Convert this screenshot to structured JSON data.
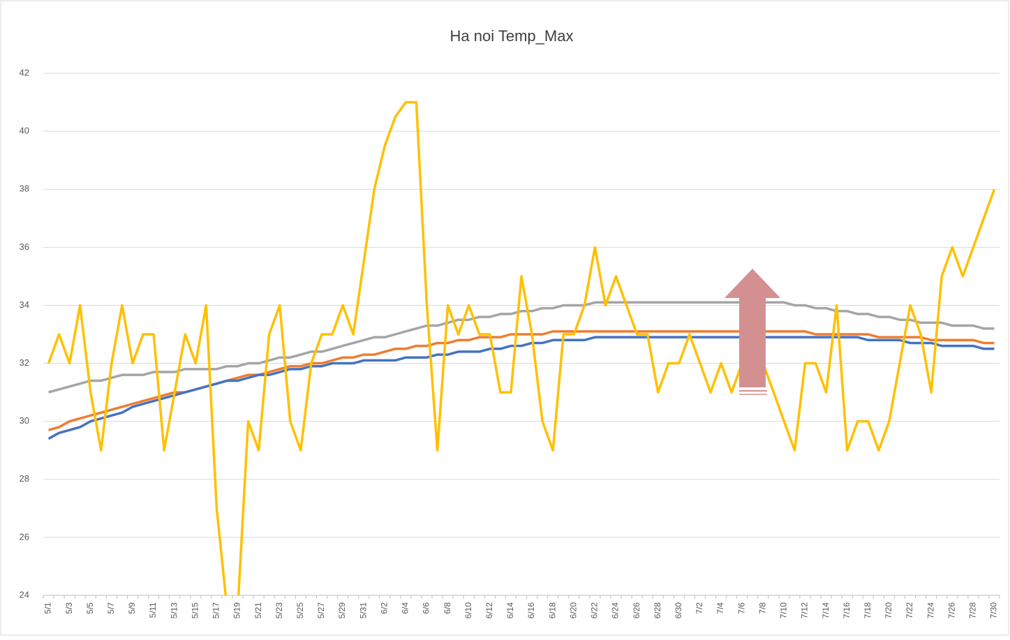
{
  "chart_data": {
    "type": "line",
    "title": "Ha noi Temp_Max",
    "categories": [
      "5/1",
      null,
      "5/3",
      null,
      "5/5",
      null,
      "5/7",
      null,
      "5/9",
      null,
      "5/11",
      null,
      "5/13",
      null,
      "5/15",
      null,
      "5/17",
      null,
      "5/19",
      null,
      "5/21",
      null,
      "5/23",
      null,
      "5/25",
      null,
      "5/27",
      null,
      "5/29",
      null,
      "5/31",
      null,
      "6/2",
      null,
      "6/4",
      null,
      "6/6",
      null,
      "6/8",
      null,
      "6/10",
      null,
      "6/12",
      null,
      "6/14",
      null,
      "6/16",
      null,
      "6/18",
      null,
      "6/20",
      null,
      "6/22",
      null,
      "6/24",
      null,
      "6/26",
      null,
      "6/28",
      null,
      "6/30",
      null,
      "7/2",
      null,
      "7/4",
      null,
      "7/6",
      null,
      "7/8",
      null,
      "7/10",
      null,
      "7/12",
      null,
      "7/14",
      null,
      "7/16",
      null,
      "7/18",
      null,
      "7/20",
      null,
      "7/22",
      null,
      "7/24",
      null,
      "7/26",
      null,
      "7/28",
      null,
      "7/30"
    ],
    "series": [
      {
        "color": "#a5a5a5",
        "values": [
          31.0,
          31.1,
          31.2,
          31.3,
          31.4,
          31.4,
          31.5,
          31.6,
          31.6,
          31.6,
          31.7,
          31.7,
          31.7,
          31.8,
          31.8,
          31.8,
          31.8,
          31.9,
          31.9,
          32.0,
          32.0,
          32.1,
          32.2,
          32.2,
          32.3,
          32.4,
          32.4,
          32.5,
          32.6,
          32.7,
          32.8,
          32.9,
          32.9,
          33.0,
          33.1,
          33.2,
          33.3,
          33.3,
          33.4,
          33.5,
          33.5,
          33.6,
          33.6,
          33.7,
          33.7,
          33.8,
          33.8,
          33.9,
          33.9,
          34.0,
          34.0,
          34.0,
          34.1,
          34.1,
          34.1,
          34.1,
          34.1,
          34.1,
          34.1,
          34.1,
          34.1,
          34.1,
          34.1,
          34.1,
          34.1,
          34.1,
          34.1,
          34.1,
          34.1,
          34.1,
          34.1,
          34.0,
          34.0,
          33.9,
          33.9,
          33.8,
          33.8,
          33.7,
          33.7,
          33.6,
          33.6,
          33.5,
          33.5,
          33.4,
          33.4,
          33.4,
          33.3,
          33.3,
          33.3,
          33.2,
          33.2
        ]
      },
      {
        "color": "#ed7d31",
        "values": [
          29.7,
          29.8,
          30.0,
          30.1,
          30.2,
          30.3,
          30.4,
          30.5,
          30.6,
          30.7,
          30.8,
          30.9,
          31.0,
          31.0,
          31.1,
          31.2,
          31.3,
          31.4,
          31.5,
          31.6,
          31.6,
          31.7,
          31.8,
          31.9,
          31.9,
          32.0,
          32.0,
          32.1,
          32.2,
          32.2,
          32.3,
          32.3,
          32.4,
          32.5,
          32.5,
          32.6,
          32.6,
          32.7,
          32.7,
          32.8,
          32.8,
          32.9,
          32.9,
          32.9,
          33.0,
          33.0,
          33.0,
          33.0,
          33.1,
          33.1,
          33.1,
          33.1,
          33.1,
          33.1,
          33.1,
          33.1,
          33.1,
          33.1,
          33.1,
          33.1,
          33.1,
          33.1,
          33.1,
          33.1,
          33.1,
          33.1,
          33.1,
          33.1,
          33.1,
          33.1,
          33.1,
          33.1,
          33.1,
          33.0,
          33.0,
          33.0,
          33.0,
          33.0,
          33.0,
          32.9,
          32.9,
          32.9,
          32.9,
          32.9,
          32.8,
          32.8,
          32.8,
          32.8,
          32.8,
          32.7,
          32.7
        ]
      },
      {
        "color": "#4472c4",
        "values": [
          29.4,
          29.6,
          29.7,
          29.8,
          30.0,
          30.1,
          30.2,
          30.3,
          30.5,
          30.6,
          30.7,
          30.8,
          30.9,
          31.0,
          31.1,
          31.2,
          31.3,
          31.4,
          31.4,
          31.5,
          31.6,
          31.6,
          31.7,
          31.8,
          31.8,
          31.9,
          31.9,
          32.0,
          32.0,
          32.0,
          32.1,
          32.1,
          32.1,
          32.1,
          32.2,
          32.2,
          32.2,
          32.3,
          32.3,
          32.4,
          32.4,
          32.4,
          32.5,
          32.5,
          32.6,
          32.6,
          32.7,
          32.7,
          32.8,
          32.8,
          32.8,
          32.8,
          32.9,
          32.9,
          32.9,
          32.9,
          32.9,
          32.9,
          32.9,
          32.9,
          32.9,
          32.9,
          32.9,
          32.9,
          32.9,
          32.9,
          32.9,
          32.9,
          32.9,
          32.9,
          32.9,
          32.9,
          32.9,
          32.9,
          32.9,
          32.9,
          32.9,
          32.9,
          32.8,
          32.8,
          32.8,
          32.8,
          32.7,
          32.7,
          32.7,
          32.6,
          32.6,
          32.6,
          32.6,
          32.5,
          32.5
        ]
      },
      {
        "color": "#ffc000",
        "values": [
          32,
          33,
          32,
          34,
          31,
          29,
          32,
          34,
          32,
          33,
          33,
          29,
          31,
          33,
          32,
          34,
          27,
          23.5,
          23.5,
          30,
          29,
          33,
          34,
          30,
          29,
          32,
          33,
          33,
          34,
          33,
          35.5,
          38,
          39.5,
          40.5,
          41,
          41,
          34,
          29,
          34,
          33,
          34,
          33,
          33,
          31,
          31,
          35,
          33,
          30,
          29,
          33,
          33,
          34,
          36,
          34,
          35,
          34,
          33,
          33,
          31,
          32,
          32,
          33,
          32,
          31,
          32,
          31,
          32,
          32,
          32,
          31,
          30,
          29,
          32,
          32,
          31,
          34,
          29,
          30,
          30,
          29,
          30,
          32,
          34,
          33,
          31,
          35,
          36,
          35,
          36,
          37,
          38
        ]
      }
    ],
    "ylim": [
      24,
      42
    ],
    "yticks": [
      24,
      26,
      28,
      30,
      32,
      34,
      36,
      38,
      40,
      42
    ],
    "grid": true
  }
}
